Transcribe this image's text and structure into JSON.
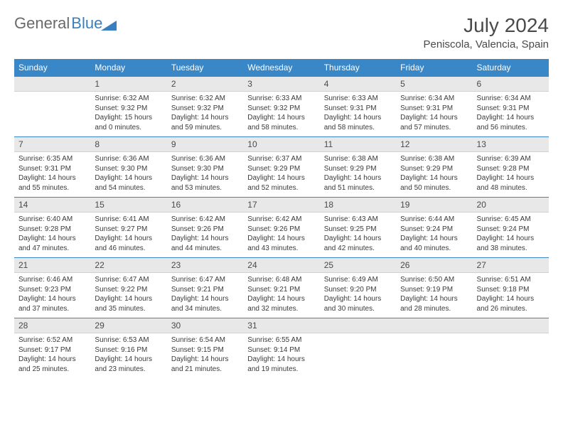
{
  "logo": {
    "part1": "General",
    "part2": "Blue"
  },
  "title": "July 2024",
  "location": "Peniscola, Valencia, Spain",
  "weekdays": [
    "Sunday",
    "Monday",
    "Tuesday",
    "Wednesday",
    "Thursday",
    "Friday",
    "Saturday"
  ],
  "colors": {
    "header_bg": "#3a87c8",
    "header_text": "#ffffff",
    "daynum_bg": "#e8e8e8",
    "row_border": "#3a87c8"
  },
  "weeks": [
    [
      null,
      {
        "n": "1",
        "sr": "6:32 AM",
        "ss": "9:32 PM",
        "dl": "15 hours and 0 minutes."
      },
      {
        "n": "2",
        "sr": "6:32 AM",
        "ss": "9:32 PM",
        "dl": "14 hours and 59 minutes."
      },
      {
        "n": "3",
        "sr": "6:33 AM",
        "ss": "9:32 PM",
        "dl": "14 hours and 58 minutes."
      },
      {
        "n": "4",
        "sr": "6:33 AM",
        "ss": "9:31 PM",
        "dl": "14 hours and 58 minutes."
      },
      {
        "n": "5",
        "sr": "6:34 AM",
        "ss": "9:31 PM",
        "dl": "14 hours and 57 minutes."
      },
      {
        "n": "6",
        "sr": "6:34 AM",
        "ss": "9:31 PM",
        "dl": "14 hours and 56 minutes."
      }
    ],
    [
      {
        "n": "7",
        "sr": "6:35 AM",
        "ss": "9:31 PM",
        "dl": "14 hours and 55 minutes."
      },
      {
        "n": "8",
        "sr": "6:36 AM",
        "ss": "9:30 PM",
        "dl": "14 hours and 54 minutes."
      },
      {
        "n": "9",
        "sr": "6:36 AM",
        "ss": "9:30 PM",
        "dl": "14 hours and 53 minutes."
      },
      {
        "n": "10",
        "sr": "6:37 AM",
        "ss": "9:29 PM",
        "dl": "14 hours and 52 minutes."
      },
      {
        "n": "11",
        "sr": "6:38 AM",
        "ss": "9:29 PM",
        "dl": "14 hours and 51 minutes."
      },
      {
        "n": "12",
        "sr": "6:38 AM",
        "ss": "9:29 PM",
        "dl": "14 hours and 50 minutes."
      },
      {
        "n": "13",
        "sr": "6:39 AM",
        "ss": "9:28 PM",
        "dl": "14 hours and 48 minutes."
      }
    ],
    [
      {
        "n": "14",
        "sr": "6:40 AM",
        "ss": "9:28 PM",
        "dl": "14 hours and 47 minutes."
      },
      {
        "n": "15",
        "sr": "6:41 AM",
        "ss": "9:27 PM",
        "dl": "14 hours and 46 minutes."
      },
      {
        "n": "16",
        "sr": "6:42 AM",
        "ss": "9:26 PM",
        "dl": "14 hours and 44 minutes."
      },
      {
        "n": "17",
        "sr": "6:42 AM",
        "ss": "9:26 PM",
        "dl": "14 hours and 43 minutes."
      },
      {
        "n": "18",
        "sr": "6:43 AM",
        "ss": "9:25 PM",
        "dl": "14 hours and 42 minutes."
      },
      {
        "n": "19",
        "sr": "6:44 AM",
        "ss": "9:24 PM",
        "dl": "14 hours and 40 minutes."
      },
      {
        "n": "20",
        "sr": "6:45 AM",
        "ss": "9:24 PM",
        "dl": "14 hours and 38 minutes."
      }
    ],
    [
      {
        "n": "21",
        "sr": "6:46 AM",
        "ss": "9:23 PM",
        "dl": "14 hours and 37 minutes."
      },
      {
        "n": "22",
        "sr": "6:47 AM",
        "ss": "9:22 PM",
        "dl": "14 hours and 35 minutes."
      },
      {
        "n": "23",
        "sr": "6:47 AM",
        "ss": "9:21 PM",
        "dl": "14 hours and 34 minutes."
      },
      {
        "n": "24",
        "sr": "6:48 AM",
        "ss": "9:21 PM",
        "dl": "14 hours and 32 minutes."
      },
      {
        "n": "25",
        "sr": "6:49 AM",
        "ss": "9:20 PM",
        "dl": "14 hours and 30 minutes."
      },
      {
        "n": "26",
        "sr": "6:50 AM",
        "ss": "9:19 PM",
        "dl": "14 hours and 28 minutes."
      },
      {
        "n": "27",
        "sr": "6:51 AM",
        "ss": "9:18 PM",
        "dl": "14 hours and 26 minutes."
      }
    ],
    [
      {
        "n": "28",
        "sr": "6:52 AM",
        "ss": "9:17 PM",
        "dl": "14 hours and 25 minutes."
      },
      {
        "n": "29",
        "sr": "6:53 AM",
        "ss": "9:16 PM",
        "dl": "14 hours and 23 minutes."
      },
      {
        "n": "30",
        "sr": "6:54 AM",
        "ss": "9:15 PM",
        "dl": "14 hours and 21 minutes."
      },
      {
        "n": "31",
        "sr": "6:55 AM",
        "ss": "9:14 PM",
        "dl": "14 hours and 19 minutes."
      },
      null,
      null,
      null
    ]
  ],
  "labels": {
    "sunrise": "Sunrise:",
    "sunset": "Sunset:",
    "daylight": "Daylight:"
  }
}
